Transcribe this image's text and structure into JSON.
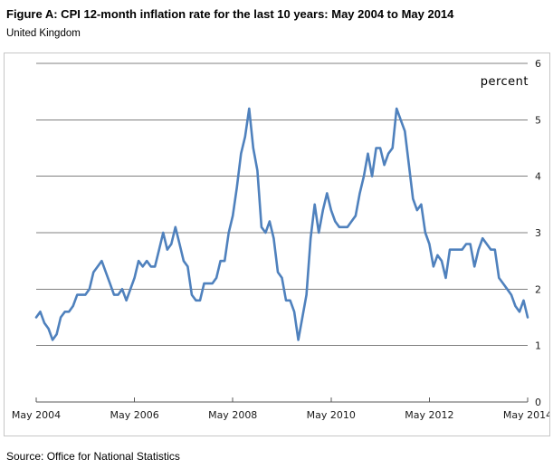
{
  "figure": {
    "title": "Figure A: CPI 12-month inflation rate for the last 10 years: May 2004 to May 2014",
    "subtitle": "United Kingdom",
    "source": "Source: Office for National Statistics"
  },
  "chart_data": {
    "type": "line",
    "title": "CPI 12-month inflation rate, May 2004 to May 2014",
    "unit_label": "percent",
    "x_tick_labels": [
      "May 2004",
      "May 2006",
      "May 2008",
      "May 2010",
      "May 2012",
      "May 2014"
    ],
    "y_tick_labels": [
      "0",
      "1",
      "2",
      "3",
      "4",
      "5",
      "6"
    ],
    "ylim": [
      0,
      6
    ],
    "frequency": "monthly",
    "x_start": "May 2004",
    "x_end": "May 2014",
    "grid": "horizontal",
    "legend_position": "none",
    "series": [
      {
        "name": "CPI 12-month inflation rate",
        "values": [
          1.5,
          1.6,
          1.4,
          1.3,
          1.1,
          1.2,
          1.5,
          1.6,
          1.6,
          1.7,
          1.9,
          1.9,
          1.9,
          2.0,
          2.3,
          2.4,
          2.5,
          2.3,
          2.1,
          1.9,
          1.9,
          2.0,
          1.8,
          2.0,
          2.2,
          2.5,
          2.4,
          2.5,
          2.4,
          2.4,
          2.7,
          3.0,
          2.7,
          2.8,
          3.1,
          2.8,
          2.5,
          2.4,
          1.9,
          1.8,
          1.8,
          2.1,
          2.1,
          2.1,
          2.2,
          2.5,
          2.5,
          3.0,
          3.3,
          3.8,
          4.4,
          4.7,
          5.2,
          4.5,
          4.1,
          3.1,
          3.0,
          3.2,
          2.9,
          2.3,
          2.2,
          1.8,
          1.8,
          1.6,
          1.1,
          1.5,
          1.9,
          2.9,
          3.5,
          3.0,
          3.4,
          3.7,
          3.4,
          3.2,
          3.1,
          3.1,
          3.1,
          3.2,
          3.3,
          3.7,
          4.0,
          4.4,
          4.0,
          4.5,
          4.5,
          4.2,
          4.4,
          4.5,
          5.2,
          5.0,
          4.8,
          4.2,
          3.6,
          3.4,
          3.5,
          3.0,
          2.8,
          2.4,
          2.6,
          2.5,
          2.2,
          2.7,
          2.7,
          2.7,
          2.7,
          2.8,
          2.8,
          2.4,
          2.7,
          2.9,
          2.8,
          2.7,
          2.7,
          2.2,
          2.1,
          2.0,
          1.9,
          1.7,
          1.6,
          1.8,
          1.5
        ]
      }
    ],
    "colors": {
      "line": "#4F81BD",
      "gridline": "#808080",
      "axis": "#595959",
      "label": "#1a1a1a",
      "frame_border": "#c6c6c6"
    }
  }
}
